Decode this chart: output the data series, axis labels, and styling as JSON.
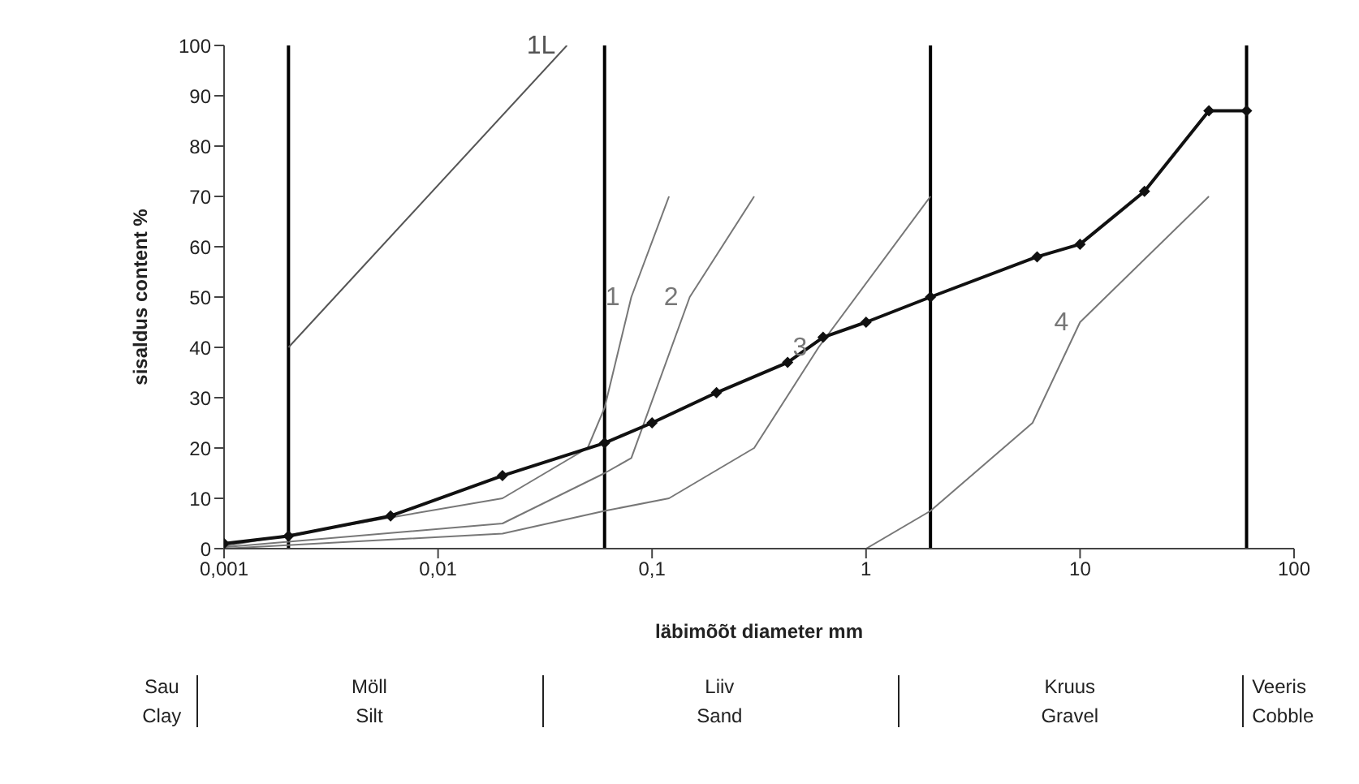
{
  "chart_data": {
    "type": "line",
    "xlabel": "läbimõõt   diameter mm",
    "ylabel": "sisaldus   content %",
    "log": "x",
    "xlim": [
      0.001,
      100
    ],
    "xticks": [
      {
        "value": 0.001,
        "label": "0,001"
      },
      {
        "value": 0.01,
        "label": "0,01"
      },
      {
        "value": 0.1,
        "label": "0,1"
      },
      1,
      10,
      100
    ],
    "ylim": [
      0,
      100
    ],
    "yticks": [
      0,
      10,
      20,
      30,
      40,
      50,
      60,
      70,
      80,
      90,
      100
    ],
    "series": [
      {
        "name": "1L",
        "color": "#555555",
        "marker": "none",
        "x": [
          0.002,
          0.04
        ],
        "values": [
          40,
          100
        ]
      },
      {
        "name": "1",
        "color": "#777777",
        "marker": "none",
        "x": [
          0.001,
          0.02,
          0.05,
          0.06,
          0.08,
          0.12
        ],
        "values": [
          0.5,
          10,
          20,
          28,
          50,
          70
        ]
      },
      {
        "name": "2",
        "color": "#777777",
        "marker": "none",
        "x": [
          0.001,
          0.02,
          0.06,
          0.08,
          0.15,
          0.3
        ],
        "values": [
          0.3,
          5,
          15,
          18,
          50,
          70
        ]
      },
      {
        "name": "3",
        "color": "#777777",
        "marker": "none",
        "x": [
          0.001,
          0.02,
          0.06,
          0.12,
          0.3,
          0.6,
          2
        ],
        "values": [
          0,
          3,
          7.5,
          10,
          20,
          40,
          70
        ]
      },
      {
        "name": "4",
        "color": "#777777",
        "marker": "none",
        "x": [
          1,
          2,
          6,
          10,
          40
        ],
        "values": [
          0,
          7.5,
          25,
          45,
          70
        ]
      },
      {
        "color": "#111111",
        "marker": "diamond",
        "x": [
          0.001,
          0.002,
          0.006,
          0.02,
          0.06,
          0.1,
          0.2,
          0.43,
          0.63,
          1,
          2,
          6.3,
          10,
          20,
          40,
          60
        ],
        "values": [
          1,
          2.5,
          6.5,
          14.5,
          21,
          25,
          31,
          37,
          42,
          45,
          50,
          58,
          60.5,
          71,
          87,
          87
        ]
      }
    ],
    "ref_lines": [
      {
        "axis": "x",
        "value": 0.002,
        "color": "#000000"
      },
      {
        "axis": "x",
        "value": 0.06,
        "color": "#000000"
      },
      {
        "axis": "x",
        "value": 2,
        "color": "#000000"
      },
      {
        "axis": "x",
        "value": 60,
        "color": "#000000"
      }
    ],
    "annotations": [
      "Sau\nClay",
      "Möll\nSilt",
      "Liiv\nSand",
      "Kruus\nGravel",
      "Veeris\nCobble"
    ]
  }
}
